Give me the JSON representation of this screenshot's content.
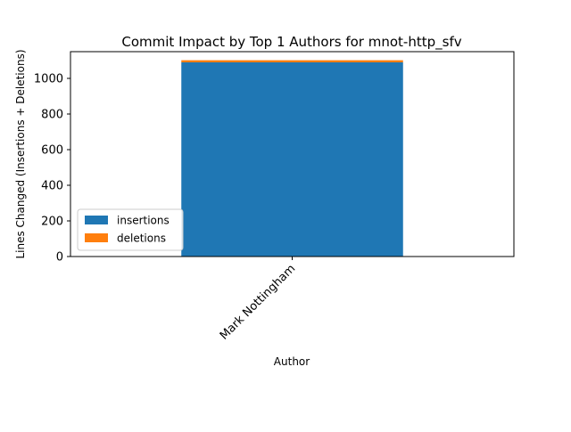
{
  "chart_data": {
    "type": "bar",
    "stacked": true,
    "title": "Commit Impact by Top 1 Authors for mnot-http_sfv",
    "xlabel": "Author",
    "ylabel": "Lines Changed (Insertions + Deletions)",
    "categories": [
      "Mark Nottingham"
    ],
    "series": [
      {
        "name": "insertions",
        "values": [
          1090
        ],
        "color": "#1f77b4"
      },
      {
        "name": "deletions",
        "values": [
          12
        ],
        "color": "#ff7f0e"
      }
    ],
    "ylim": [
      0,
      1150
    ],
    "yticks": [
      0,
      200,
      400,
      600,
      800,
      1000
    ],
    "grid": false,
    "legend_position": "lower-left"
  }
}
